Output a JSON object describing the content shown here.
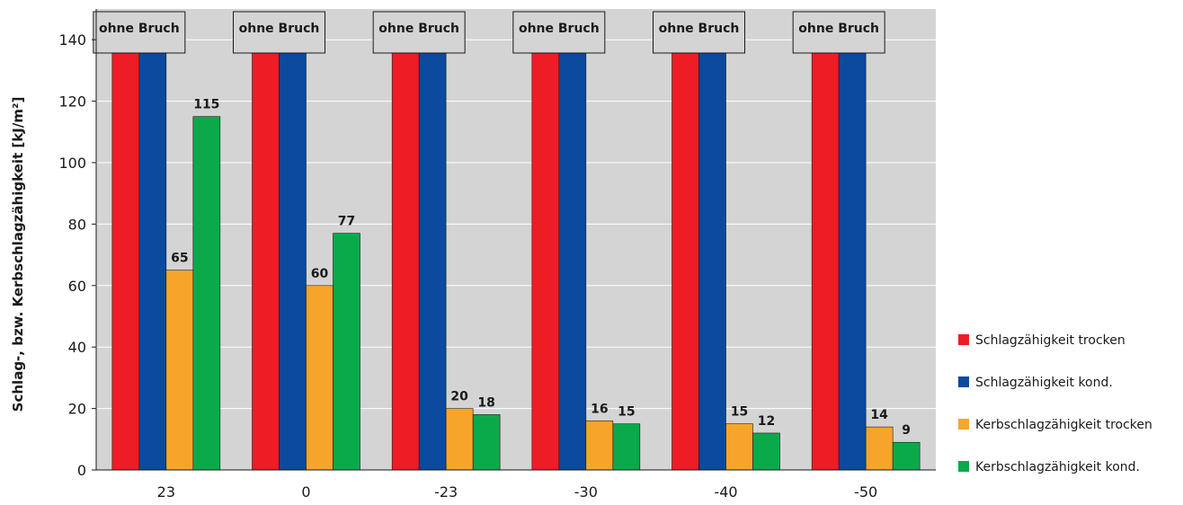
{
  "chart_data": {
    "type": "bar",
    "ylabel": "Schlag-, bzw. Kerbschlagzähigkeit [kJ/m²]",
    "xlabel": "",
    "ylim": [
      0,
      150
    ],
    "yticks": [
      0,
      20,
      40,
      60,
      80,
      100,
      120,
      140
    ],
    "grid": "horizontal",
    "legend_position": "right",
    "categories": [
      "23",
      "0",
      "-23",
      "-30",
      "-40",
      "-50"
    ],
    "series": [
      {
        "name": "Schlagzähigkeit trocken",
        "color": "#ee1c25",
        "values": [
          null,
          null,
          null,
          null,
          null,
          null
        ]
      },
      {
        "name": "Schlagzähigkeit kond.",
        "color": "#0b4a9e",
        "values": [
          null,
          null,
          null,
          null,
          null,
          null
        ]
      },
      {
        "name": "Kerbschlagzähigkeit trocken",
        "color": "#f7a52a",
        "values": [
          65,
          60,
          20,
          16,
          15,
          14
        ]
      },
      {
        "name": "Kerbschlagzähigkeit kond.",
        "color": "#0aaa4a",
        "values": [
          115,
          77,
          18,
          15,
          12,
          9
        ]
      }
    ],
    "no_break_label": "ohne Bruch",
    "no_break_series": [
      0,
      1
    ]
  }
}
